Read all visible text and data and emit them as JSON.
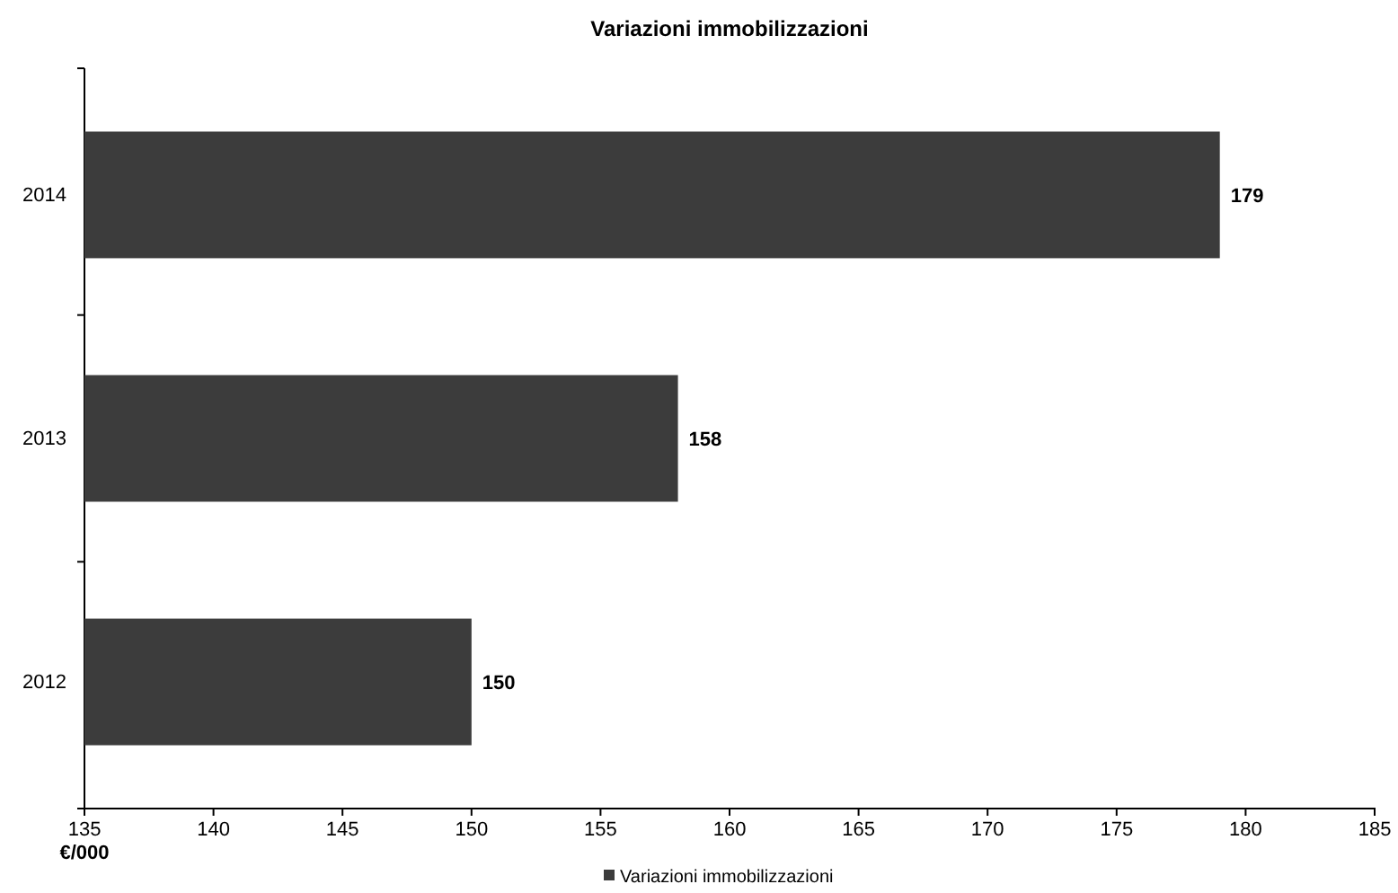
{
  "chart_data": {
    "type": "bar",
    "orientation": "horizontal",
    "title": "Variazioni immobilizzazioni",
    "xlabel": "€/000",
    "categories": [
      "2014",
      "2013",
      "2012"
    ],
    "series": [
      {
        "name": "Variazioni immobilizzazioni",
        "color": "#3c3c3c",
        "values": [
          179,
          158,
          150
        ]
      }
    ],
    "xlim": [
      135,
      185
    ],
    "xticks": [
      135,
      140,
      145,
      150,
      155,
      160,
      165,
      170,
      175,
      180,
      185
    ],
    "data_labels": true,
    "legend": "bottom",
    "grid": false
  }
}
